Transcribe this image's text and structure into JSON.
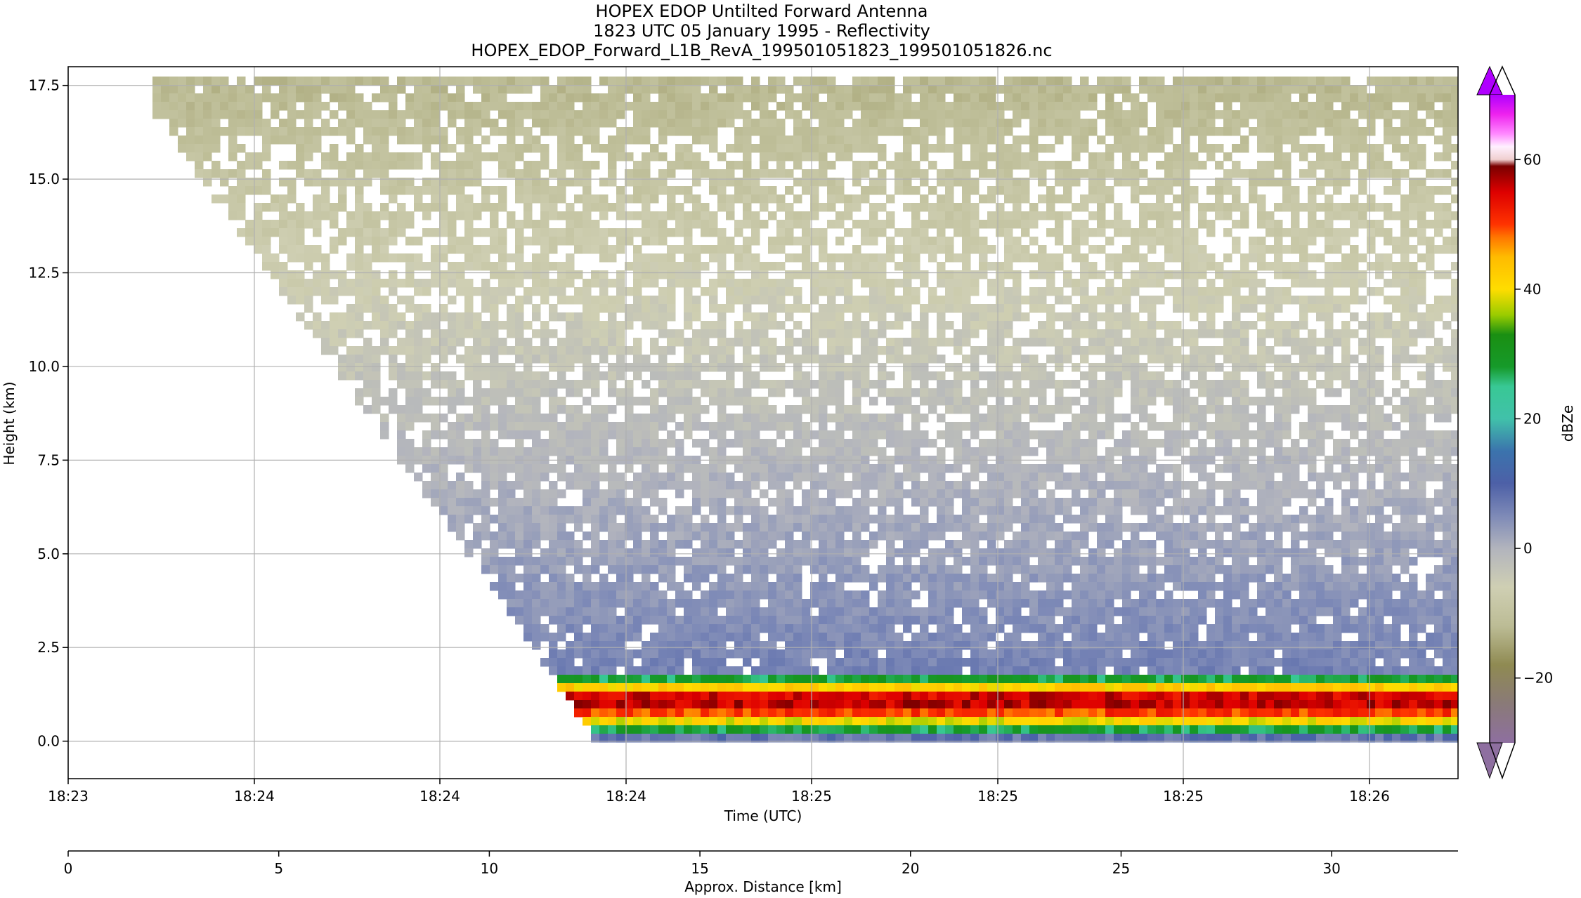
{
  "chart_data": {
    "type": "heatmap",
    "title_lines": [
      "HOPEX EDOP Untilted Forward Antenna",
      "1823 UTC 05 January 1995 - Reflectivity",
      "HOPEX_EDOP_Forward_L1B_RevA_199501051823_199501051826.nc"
    ],
    "xlabel": "Time (UTC)",
    "ylabel": "Height (km)",
    "xlabel2": "Approx. Distance [km]",
    "colorbar_label": "dBZe",
    "x_tick_labels": [
      "18:23",
      "18:24",
      "18:24",
      "18:24",
      "18:25",
      "18:25",
      "18:25",
      "18:26"
    ],
    "y_ticks": [
      0.0,
      2.5,
      5.0,
      7.5,
      10.0,
      12.5,
      15.0,
      17.5
    ],
    "y_tick_labels": [
      "0.0",
      "2.5",
      "5.0",
      "7.5",
      "10.0",
      "12.5",
      "15.0",
      "17.5"
    ],
    "ylim": [
      -1.0,
      18.0
    ],
    "distance_ticks": [
      0,
      5,
      10,
      15,
      20,
      25,
      30
    ],
    "distance_tick_labels": [
      "0",
      "5",
      "10",
      "15",
      "20",
      "25",
      "30"
    ],
    "distance_range_km": [
      0,
      33
    ],
    "colorbar_ticks": [
      -20,
      0,
      20,
      40,
      60
    ],
    "colorbar_tick_labels": [
      "−20",
      "0",
      "20",
      "40",
      "60"
    ],
    "colorbar_range": [
      -30,
      70
    ],
    "colorbar_extend": "both",
    "grid": true,
    "bands": [
      {
        "from_km": -0.1,
        "to_km": 0.1,
        "dbz": 8
      },
      {
        "from_km": 0.1,
        "to_km": 0.3,
        "dbz": 18
      },
      {
        "from_km": 0.3,
        "to_km": 0.5,
        "dbz": 28
      },
      {
        "from_km": 0.5,
        "to_km": 0.7,
        "dbz": 40
      },
      {
        "from_km": 0.7,
        "to_km": 0.9,
        "dbz": 50
      },
      {
        "from_km": 0.9,
        "to_km": 1.2,
        "dbz": 56
      },
      {
        "from_km": 1.2,
        "to_km": 1.4,
        "dbz": 55
      },
      {
        "from_km": 1.4,
        "to_km": 1.6,
        "dbz": 42
      },
      {
        "from_km": 1.6,
        "to_km": 1.7,
        "dbz": 28
      },
      {
        "from_km": 1.7,
        "to_km": 1.8,
        "dbz": 20
      }
    ],
    "signal_onset_distance_km": [
      11.4,
      12.5
    ],
    "upper_signal_dbz_range": [
      6,
      -12
    ],
    "colors": {
      "background": "#ffffff",
      "grid": "#b0b0b0",
      "clear_air_low": "#4e63a3",
      "clear_air_high": "#c8c8a8",
      "core": "#cc0000",
      "colormap": [
        [
          -30,
          "#8e6fa0"
        ],
        [
          -24,
          "#8a7a78"
        ],
        [
          -18,
          "#8f8a52"
        ],
        [
          -12,
          "#bcbc95"
        ],
        [
          -6,
          "#cfcfb3"
        ],
        [
          0,
          "#b2b4bd"
        ],
        [
          5,
          "#7e8ab7"
        ],
        [
          10,
          "#4d60a7"
        ],
        [
          15,
          "#3b73ad"
        ],
        [
          20,
          "#41c1aa"
        ],
        [
          25,
          "#38c894"
        ],
        [
          28,
          "#169a2a"
        ],
        [
          33,
          "#1a8f12"
        ],
        [
          36,
          "#99cc00"
        ],
        [
          40,
          "#ffdd00"
        ],
        [
          45,
          "#ffbb00"
        ],
        [
          48,
          "#ff7700"
        ],
        [
          50,
          "#ff3300"
        ],
        [
          55,
          "#dd0000"
        ],
        [
          59,
          "#7a0000"
        ],
        [
          60,
          "#f0cfcf"
        ],
        [
          62,
          "#fff0ff"
        ],
        [
          64,
          "#ff88ff"
        ],
        [
          67,
          "#ee22ee"
        ],
        [
          70,
          "#b000ff"
        ]
      ]
    }
  }
}
